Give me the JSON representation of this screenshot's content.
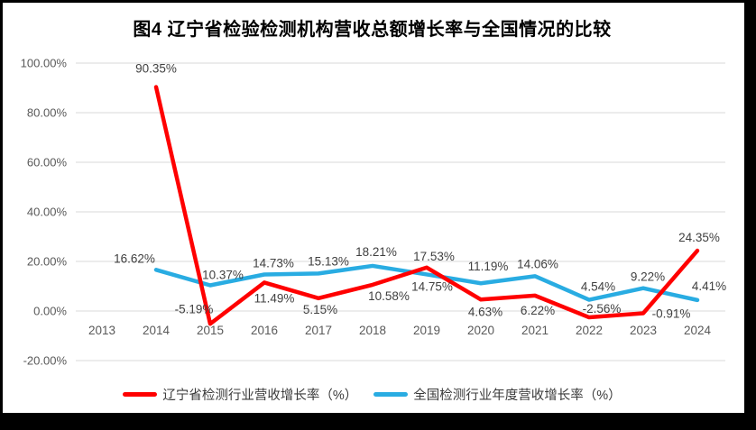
{
  "frame": {
    "border_color": "#000000",
    "canvas_color": "#ffffff"
  },
  "chart_data": {
    "type": "line",
    "title": "图4 辽宁省检验检测机构营收总额增长率与全国情况的比较",
    "categories": [
      "2013",
      "2014",
      "2015",
      "2016",
      "2017",
      "2018",
      "2019",
      "2020",
      "2021",
      "2022",
      "2023",
      "2024"
    ],
    "y_axis": {
      "tick_labels": [
        "100.00%",
        "80.00%",
        "60.00%",
        "40.00%",
        "20.00%",
        "0.00%",
        "-20.00%"
      ],
      "tick_values": [
        100,
        80,
        60,
        40,
        20,
        0,
        -20
      ],
      "min": -20,
      "max": 100
    },
    "grid": "horizontal-only",
    "legend_position": "bottom",
    "colors": {
      "gridline": "#d9d9d9",
      "axis_text": "#595959",
      "data_label_text": "#404040"
    },
    "series": [
      {
        "name": "辽宁省检测行业营收增长率（%）",
        "color": "#ff0000",
        "x": [
          "2014",
          "2015",
          "2016",
          "2017",
          "2018",
          "2019",
          "2020",
          "2021",
          "2022",
          "2023",
          "2024"
        ],
        "values": [
          90.35,
          -5.19,
          11.49,
          5.15,
          10.58,
          17.53,
          4.63,
          6.22,
          -2.56,
          -0.91,
          24.35
        ],
        "point_labels": [
          "90.35%",
          "-5.19%",
          "11.49%",
          "5.15%",
          "10.58%",
          "17.53%",
          "4.63%",
          "6.22%",
          "-2.56%",
          "-0.91%",
          "24.35%"
        ],
        "label_offsets": [
          [
            0,
            -16
          ],
          [
            -18,
            -12
          ],
          [
            11,
            22
          ],
          [
            2,
            17
          ],
          [
            18,
            17
          ],
          [
            8,
            -8
          ],
          [
            5,
            18
          ],
          [
            3,
            21
          ],
          [
            14,
            -5
          ],
          [
            31,
            5
          ],
          [
            2,
            -10
          ]
        ]
      },
      {
        "name": "全国检测行业年度营收增长率（%）",
        "color": "#29ace2",
        "x": [
          "2014",
          "2015",
          "2016",
          "2017",
          "2018",
          "2019",
          "2020",
          "2021",
          "2022",
          "2023",
          "2024"
        ],
        "values": [
          16.62,
          10.37,
          14.73,
          15.13,
          18.21,
          14.75,
          11.19,
          14.06,
          4.54,
          9.22,
          4.41
        ],
        "point_labels": [
          "16.62%",
          "10.37%",
          "14.73%",
          "15.13%",
          "18.21%",
          "14.75%",
          "11.19%",
          "14.06%",
          "4.54%",
          "9.22%",
          "4.41%"
        ],
        "label_offsets": [
          [
            -24,
            -8
          ],
          [
            14,
            -7
          ],
          [
            10,
            -8
          ],
          [
            11,
            -9
          ],
          [
            4,
            -11
          ],
          [
            6,
            18
          ],
          [
            8,
            -14
          ],
          [
            3,
            -9
          ],
          [
            10,
            -10
          ],
          [
            5,
            -8
          ],
          [
            13,
            -11
          ]
        ]
      }
    ]
  }
}
